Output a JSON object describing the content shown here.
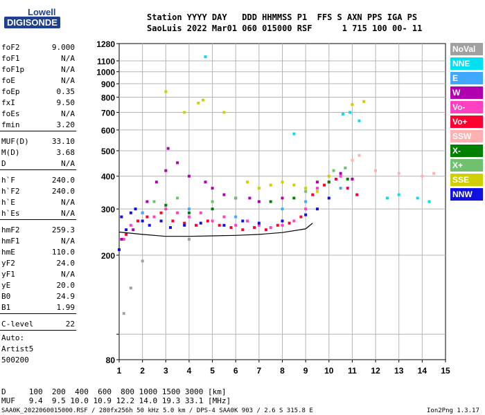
{
  "logo": {
    "brand": "Lowell",
    "product": "DIGISONDE"
  },
  "header": {
    "line1": "Station YYYY DAY   DDD HHMMSS P1  FFS S AXN PPS IGA PS",
    "line2": "SaoLuis 2022 Mar01 060 015000 RSF      1 715 100 00- 11"
  },
  "params": [
    {
      "name": "foF2",
      "value": "9.000"
    },
    {
      "name": "foF1",
      "value": "N/A"
    },
    {
      "name": "foF1p",
      "value": "N/A"
    },
    {
      "name": "foE",
      "value": "N/A"
    },
    {
      "name": "foEp",
      "value": "0.35"
    },
    {
      "name": "fxI",
      "value": "9.50"
    },
    {
      "name": "foEs",
      "value": "N/A"
    },
    {
      "name": "fmin",
      "value": "3.20"
    },
    {
      "name": "MUF(D)",
      "value": "33.10"
    },
    {
      "name": "M(D)",
      "value": "3.68"
    },
    {
      "name": "D",
      "value": "N/A"
    },
    {
      "name": "h`F",
      "value": "240.0"
    },
    {
      "name": "h`F2",
      "value": "240.0"
    },
    {
      "name": "h`E",
      "value": "N/A"
    },
    {
      "name": "h`Es",
      "value": "N/A"
    },
    {
      "name": "hmF2",
      "value": "259.3"
    },
    {
      "name": "hmF1",
      "value": "N/A"
    },
    {
      "name": "hmE",
      "value": "110.0"
    },
    {
      "name": "yF2",
      "value": "24.0"
    },
    {
      "name": "yF1",
      "value": "N/A"
    },
    {
      "name": "yE",
      "value": "20.0"
    },
    {
      "name": "B0",
      "value": "24.9"
    },
    {
      "name": "B1",
      "value": "1.99"
    },
    {
      "name": "C-level",
      "value": "22"
    }
  ],
  "autoscaling": {
    "line1": "Auto:",
    "line2": "Artist5",
    "line3": "500200"
  },
  "legend": [
    {
      "label": "NoVal",
      "bg": "#a0a0a0",
      "fg": "#ffffff"
    },
    {
      "label": "NNE",
      "bg": "#00e0f0",
      "fg": "#ffffff"
    },
    {
      "label": "E",
      "bg": "#40a8ff",
      "fg": "#ffffff"
    },
    {
      "label": "W",
      "bg": "#b000b0",
      "fg": "#ffffff"
    },
    {
      "label": "Vo-",
      "bg": "#ff40c0",
      "fg": "#ffffff"
    },
    {
      "label": "Vo+",
      "bg": "#ff0030",
      "fg": "#ffffff"
    },
    {
      "label": "SSW",
      "bg": "#ffb0b0",
      "fg": "#ffffff"
    },
    {
      "label": "X-",
      "bg": "#008000",
      "fg": "#ffffff"
    },
    {
      "label": "X+",
      "bg": "#70c070",
      "fg": "#ffffff"
    },
    {
      "label": "SSE",
      "bg": "#d0d000",
      "fg": "#ffffff"
    },
    {
      "label": "NNW",
      "bg": "#1010e0",
      "fg": "#ffffff"
    }
  ],
  "footer": {
    "d_row": "D     100  200  400  600  800 1000 1500 3000 [km]",
    "muf_row": "MUF   9.4  9.5 10.0 10.9 12.2 14.0 19.3 33.1 [MHz]",
    "file_line": "SAA0K_2022060015000.RSF / 280fx256h 50 kHz 5.0 km / DPS-4 SAA0K 903 / 2.6 S 315.8 E",
    "version": "Ion2Png 1.3.17"
  },
  "chart_data": {
    "type": "scatter",
    "title": "",
    "xlabel": "",
    "ylabel": "",
    "xlim": [
      1,
      15
    ],
    "ylim": [
      80,
      1280
    ],
    "y_scale": "log",
    "grid": true,
    "x_ticks": [
      "1",
      "2",
      "3",
      "4",
      "5",
      "6",
      "7",
      "8",
      "9",
      "10",
      "11",
      "12",
      "13",
      "14",
      "15"
    ],
    "y_ticks": [
      {
        "value": 80,
        "label": "80"
      },
      {
        "value": 100,
        "label": ""
      },
      {
        "value": 200,
        "label": "200"
      },
      {
        "value": 300,
        "label": "300"
      },
      {
        "value": 400,
        "label": "400"
      },
      {
        "value": 500,
        "label": "500"
      },
      {
        "value": 600,
        "label": "600"
      },
      {
        "value": 700,
        "label": "700"
      },
      {
        "value": 800,
        "label": "800"
      },
      {
        "value": 900,
        "label": "900"
      },
      {
        "value": 1000,
        "label": "1000"
      },
      {
        "value": 1100,
        "label": "1100"
      },
      {
        "value": 1280,
        "label": "1280"
      }
    ],
    "series": [
      {
        "name": "Vo-",
        "color": "#ff40c0",
        "points": [
          [
            1.2,
            230
          ],
          [
            1.5,
            260
          ],
          [
            2.0,
            290
          ],
          [
            2.5,
            280
          ],
          [
            3.0,
            300
          ],
          [
            3.5,
            290
          ],
          [
            4.0,
            280
          ],
          [
            4.5,
            290
          ],
          [
            5.0,
            270
          ],
          [
            5.5,
            280
          ],
          [
            6.0,
            260
          ],
          [
            6.5,
            270
          ],
          [
            7.0,
            260
          ],
          [
            7.5,
            255
          ],
          [
            8.0,
            260
          ],
          [
            8.5,
            270
          ],
          [
            9.0,
            300
          ],
          [
            9.5,
            360
          ],
          [
            10.0,
            380
          ],
          [
            10.5,
            400
          ],
          [
            11.0,
            390
          ]
        ]
      },
      {
        "name": "Vo+",
        "color": "#ff0030",
        "points": [
          [
            1.3,
            240
          ],
          [
            1.8,
            270
          ],
          [
            2.2,
            280
          ],
          [
            2.8,
            290
          ],
          [
            3.3,
            270
          ],
          [
            3.8,
            265
          ],
          [
            4.3,
            260
          ],
          [
            4.8,
            270
          ],
          [
            5.3,
            260
          ],
          [
            5.8,
            255
          ],
          [
            6.3,
            250
          ],
          [
            6.8,
            255
          ],
          [
            7.3,
            250
          ],
          [
            7.8,
            260
          ],
          [
            8.3,
            265
          ],
          [
            8.8,
            280
          ],
          [
            9.3,
            340
          ],
          [
            9.8,
            370
          ],
          [
            10.3,
            390
          ],
          [
            10.8,
            360
          ],
          [
            11.2,
            340
          ]
        ]
      },
      {
        "name": "W",
        "color": "#b000b0",
        "points": [
          [
            1.1,
            230
          ],
          [
            1.6,
            250
          ],
          [
            2.2,
            320
          ],
          [
            2.6,
            380
          ],
          [
            3.0,
            420
          ],
          [
            3.1,
            510
          ],
          [
            3.5,
            450
          ],
          [
            4.0,
            400
          ],
          [
            4.7,
            380
          ],
          [
            5.0,
            360
          ],
          [
            5.5,
            340
          ],
          [
            6.0,
            330
          ],
          [
            6.6,
            330
          ],
          [
            7.0,
            320
          ],
          [
            8.0,
            330
          ],
          [
            9.5,
            380
          ],
          [
            10.5,
            410
          ],
          [
            11.0,
            390
          ]
        ]
      },
      {
        "name": "NNW",
        "color": "#1010e0",
        "points": [
          [
            1.0,
            210
          ],
          [
            1.1,
            280
          ],
          [
            1.3,
            250
          ],
          [
            1.5,
            290
          ],
          [
            1.7,
            300
          ],
          [
            2.0,
            270
          ],
          [
            2.3,
            260
          ],
          [
            2.8,
            270
          ],
          [
            3.2,
            255
          ],
          [
            3.8,
            260
          ],
          [
            4.5,
            265
          ],
          [
            5.5,
            260
          ],
          [
            6.3,
            270
          ],
          [
            7.0,
            265
          ],
          [
            8.0,
            270
          ],
          [
            9.0,
            285
          ],
          [
            9.5,
            300
          ],
          [
            10.0,
            330
          ]
        ]
      },
      {
        "name": "NNE",
        "color": "#00e0f0",
        "points": [
          [
            4.7,
            1140
          ],
          [
            8.5,
            580
          ],
          [
            10.6,
            690
          ],
          [
            10.9,
            700
          ],
          [
            11.3,
            650
          ],
          [
            12.5,
            330
          ],
          [
            13.0,
            340
          ],
          [
            13.8,
            330
          ],
          [
            14.3,
            320
          ]
        ]
      },
      {
        "name": "E",
        "color": "#40a8ff",
        "points": [
          [
            2.0,
            290
          ],
          [
            4.0,
            300
          ],
          [
            6.0,
            280
          ],
          [
            8.0,
            300
          ],
          [
            9.0,
            320
          ],
          [
            10.5,
            360
          ]
        ]
      },
      {
        "name": "SSE",
        "color": "#d0d000",
        "points": [
          [
            3.0,
            840
          ],
          [
            3.8,
            700
          ],
          [
            4.4,
            760
          ],
          [
            4.6,
            780
          ],
          [
            5.5,
            700
          ],
          [
            6.5,
            380
          ],
          [
            7.0,
            360
          ],
          [
            7.5,
            370
          ],
          [
            8.0,
            380
          ],
          [
            8.5,
            370
          ],
          [
            9.0,
            360
          ],
          [
            9.5,
            350
          ],
          [
            10.0,
            400
          ],
          [
            11.0,
            750
          ],
          [
            11.5,
            770
          ]
        ]
      },
      {
        "name": "X-",
        "color": "#008000",
        "points": [
          [
            3.0,
            310
          ],
          [
            4.0,
            290
          ],
          [
            5.0,
            300
          ],
          [
            7.5,
            320
          ],
          [
            8.5,
            330
          ],
          [
            10.0,
            380
          ],
          [
            10.8,
            390
          ]
        ]
      },
      {
        "name": "X+",
        "color": "#70c070",
        "points": [
          [
            2.5,
            320
          ],
          [
            3.5,
            330
          ],
          [
            5.0,
            320
          ],
          [
            6.0,
            330
          ],
          [
            9.0,
            350
          ],
          [
            10.2,
            420
          ],
          [
            10.7,
            430
          ]
        ]
      },
      {
        "name": "SSW",
        "color": "#ffb0b0",
        "points": [
          [
            11.0,
            460
          ],
          [
            11.3,
            480
          ],
          [
            12.0,
            420
          ],
          [
            13.0,
            410
          ],
          [
            14.0,
            400
          ],
          [
            14.5,
            410
          ]
        ]
      },
      {
        "name": "NoVal",
        "color": "#a0a0a0",
        "points": [
          [
            1.5,
            150
          ],
          [
            1.2,
            120
          ],
          [
            2.0,
            190
          ],
          [
            4.0,
            230
          ]
        ]
      }
    ],
    "profile_line": [
      [
        1.0,
        245
      ],
      [
        2.0,
        240
      ],
      [
        3.0,
        236
      ],
      [
        4.0,
        236
      ],
      [
        5.0,
        237
      ],
      [
        6.0,
        238
      ],
      [
        7.0,
        240
      ],
      [
        8.0,
        244
      ],
      [
        9.0,
        252
      ],
      [
        9.3,
        265
      ]
    ]
  }
}
